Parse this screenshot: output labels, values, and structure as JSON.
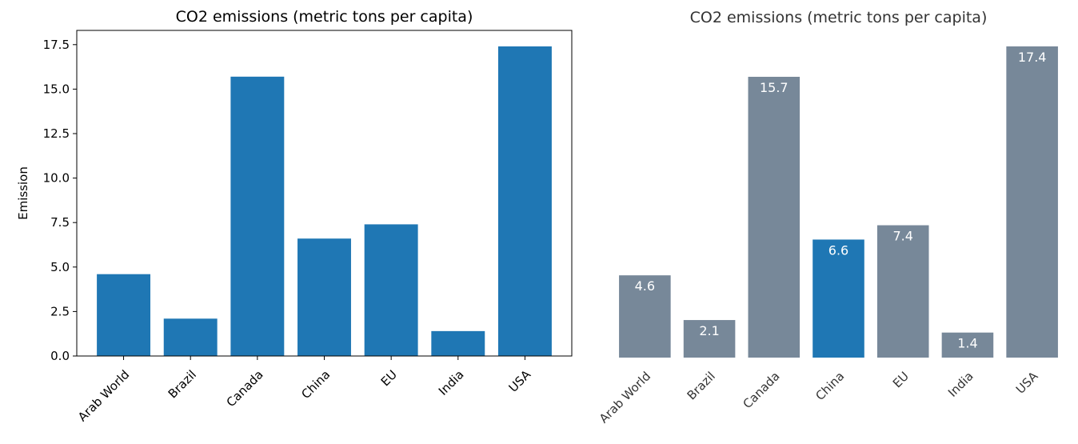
{
  "chart_data": [
    {
      "type": "bar",
      "title": "CO2 emissions (metric tons per capita)",
      "xlabel": "",
      "ylabel": "Emission",
      "categories": [
        "Arab World",
        "Brazil",
        "Canada",
        "China",
        "EU",
        "India",
        "USA"
      ],
      "values": [
        4.6,
        2.1,
        15.7,
        6.6,
        7.4,
        1.4,
        17.4
      ],
      "ylim": [
        0,
        18.3
      ],
      "yticks": [
        "0.0",
        "2.5",
        "5.0",
        "7.5",
        "10.0",
        "12.5",
        "15.0",
        "17.5"
      ],
      "bar_color": "#1f77b4",
      "grid": false,
      "frame": true
    },
    {
      "type": "bar",
      "title": "CO2 emissions (metric tons per capita)",
      "xlabel": "",
      "ylabel": "",
      "categories": [
        "Arab World",
        "Brazil",
        "Canada",
        "China",
        "EU",
        "India",
        "USA"
      ],
      "values": [
        4.6,
        2.1,
        15.7,
        6.6,
        7.4,
        1.4,
        17.4
      ],
      "data_labels": [
        "4.6",
        "2.1",
        "15.7",
        "6.6",
        "7.4",
        "1.4",
        "17.4"
      ],
      "ylim": [
        0,
        17.4
      ],
      "bar_color": "#778899",
      "highlight_category": "China",
      "highlight_color": "#1f77b4",
      "label_color": "#ffffff",
      "text_color": "#333333",
      "grid": false,
      "frame": false
    }
  ]
}
